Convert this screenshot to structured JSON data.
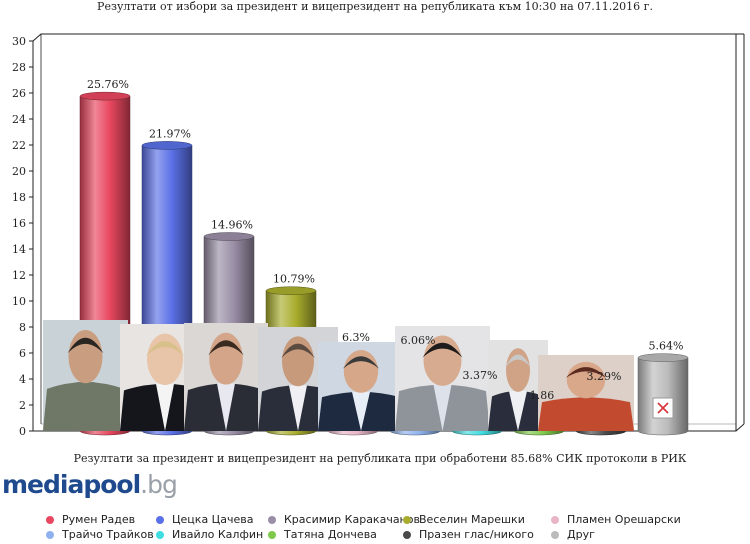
{
  "chart_data": {
    "type": "bar",
    "title": "Резултати от избори за президент и вицепрезидент на републиката към 10:30 на 07.11.2016 г.",
    "subtitle": "Резултати за президент и вицепрезидент на републиката при обработени 85.68% СИК протоколи в РИК",
    "xlabel": "",
    "ylabel": "",
    "ylim": [
      0,
      30
    ],
    "yticks": [
      0,
      2,
      4,
      6,
      8,
      10,
      12,
      14,
      16,
      18,
      20,
      22,
      24,
      26,
      28,
      30
    ],
    "grid": false,
    "legend_position": "bottom",
    "categories": [
      "Румен Радев",
      "Цецка Цачева",
      "Красимир Каракачанов",
      "Веселин Марешки",
      "Пламен Орешарски",
      "Трайчо Трайков",
      "Ивайло Калфин",
      "Татяна Дончева",
      "Празен глас/никого",
      "Друг"
    ],
    "values": [
      25.76,
      21.97,
      14.96,
      10.79,
      6.3,
      6.06,
      3.37,
      1.86,
      3.29,
      5.64
    ],
    "value_labels": [
      "25.76%",
      "21.97%",
      "14.96%",
      "10.79%",
      "6.3%",
      "6.06%",
      "3.37%",
      "1.86",
      "3.29%",
      "5.64%"
    ],
    "colors": [
      "#e8475f",
      "#5a70e6",
      "#9a8ea6",
      "#a9ad2d",
      "#e7b5c6",
      "#8fb2ee",
      "#40dde0",
      "#7fc94a",
      "#4a4a4a",
      "#bbbbbb"
    ]
  },
  "branding": {
    "logo_name": "mediapool",
    "logo_tld": ".bg"
  },
  "candidate_photo_icons": [
    "person-icon",
    "person-icon",
    "person-icon",
    "person-icon",
    "person-icon",
    "person-icon",
    "person-icon",
    "person-icon",
    "person-icon",
    "cross-icon"
  ]
}
